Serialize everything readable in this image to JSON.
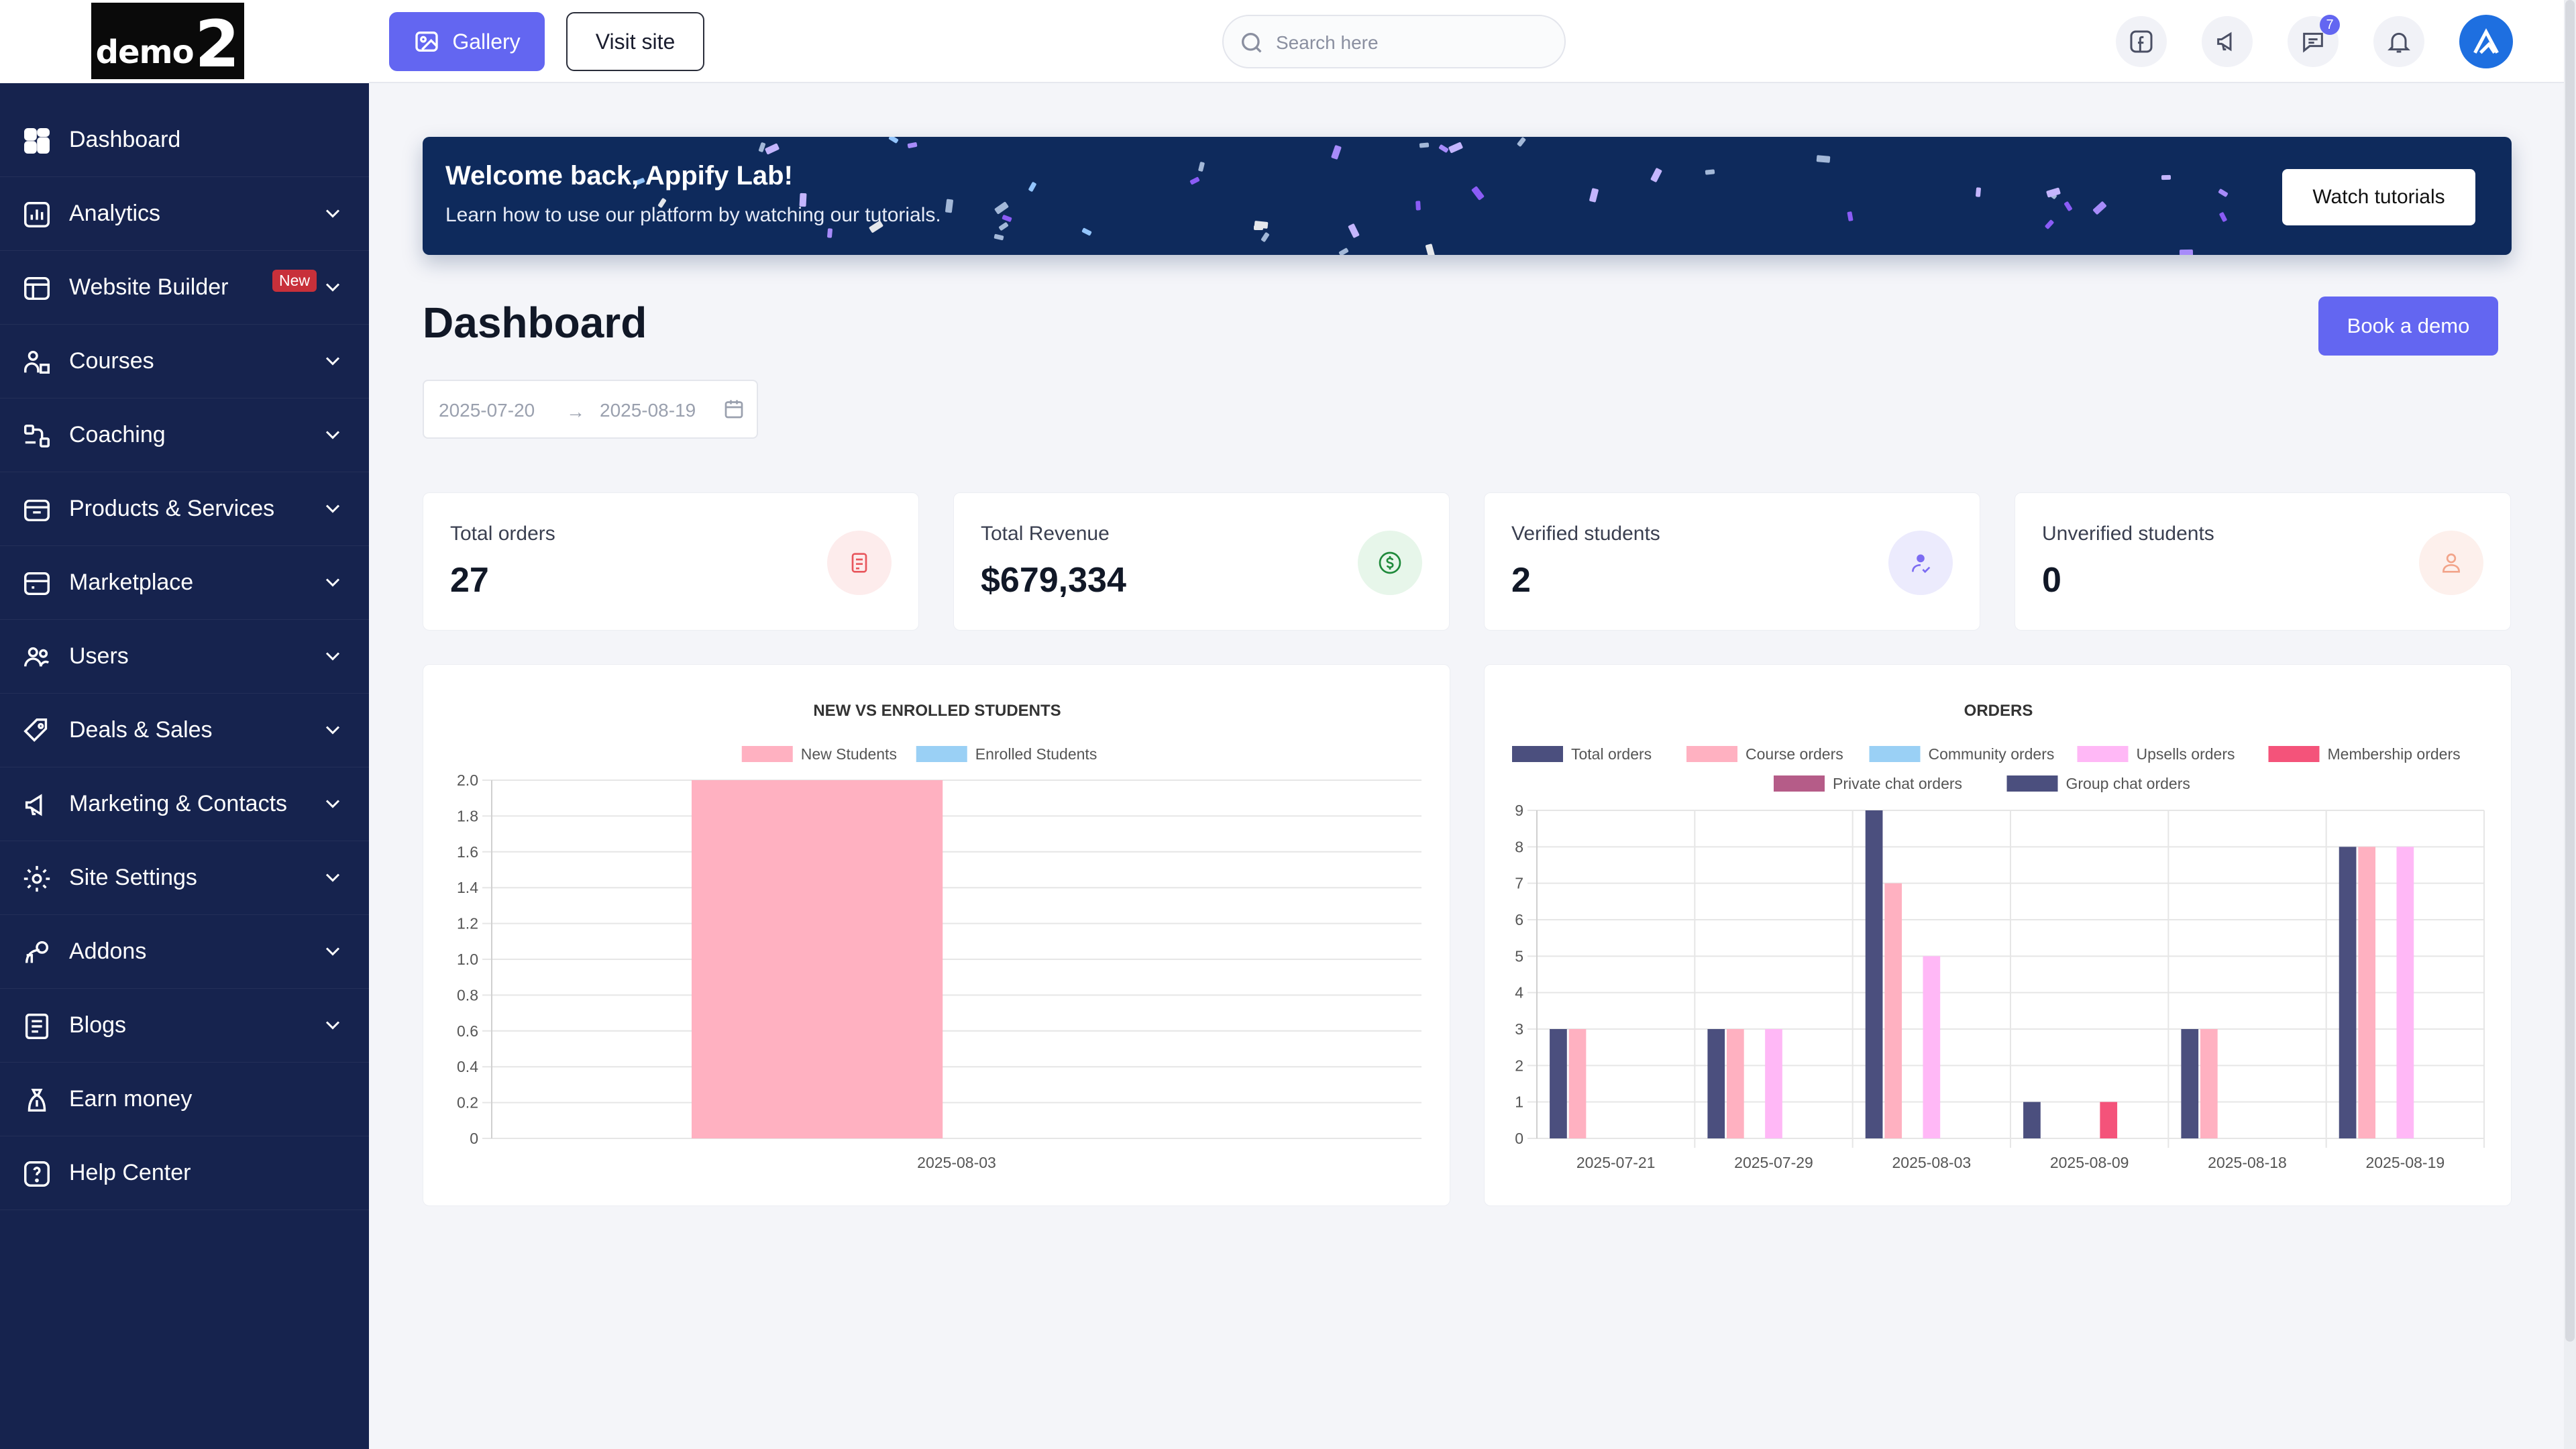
{
  "brand": {
    "logo_text": "demo",
    "logo_number": "2"
  },
  "sidebar": {
    "items": [
      {
        "label": "Dashboard",
        "icon": "dashboard-icon",
        "expandable": false
      },
      {
        "label": "Analytics",
        "icon": "analytics-icon",
        "expandable": true
      },
      {
        "label": "Website Builder",
        "icon": "website-builder-icon",
        "expandable": true,
        "badge": "New"
      },
      {
        "label": "Courses",
        "icon": "courses-icon",
        "expandable": true
      },
      {
        "label": "Coaching",
        "icon": "coaching-icon",
        "expandable": true
      },
      {
        "label": "Products & Services",
        "icon": "products-icon",
        "expandable": true
      },
      {
        "label": "Marketplace",
        "icon": "marketplace-icon",
        "expandable": true
      },
      {
        "label": "Users",
        "icon": "users-icon",
        "expandable": true
      },
      {
        "label": "Deals & Sales",
        "icon": "deals-icon",
        "expandable": true
      },
      {
        "label": "Marketing & Contacts",
        "icon": "marketing-icon",
        "expandable": true
      },
      {
        "label": "Site Settings",
        "icon": "settings-icon",
        "expandable": true
      },
      {
        "label": "Addons",
        "icon": "addons-icon",
        "expandable": true
      },
      {
        "label": "Blogs",
        "icon": "blogs-icon",
        "expandable": true
      },
      {
        "label": "Earn money",
        "icon": "earn-money-icon",
        "expandable": false
      },
      {
        "label": "Help Center",
        "icon": "help-icon",
        "expandable": false
      }
    ]
  },
  "topbar": {
    "gallery_label": "Gallery",
    "visit_label": "Visit site",
    "search_placeholder": "Search here",
    "chat_badge": "7"
  },
  "banner": {
    "title": "Welcome back, Appify Lab!",
    "subtitle": "Learn how to use our platform by watching our tutorials.",
    "button": "Watch tutorials"
  },
  "header": {
    "title": "Dashboard",
    "book_demo": "Book a demo",
    "date_from": "2025-07-20",
    "date_to": "2025-08-19",
    "date_separator": "→"
  },
  "stats": [
    {
      "label": "Total orders",
      "value": "27",
      "icon": "orders-icon",
      "color": "#e8565c",
      "bg": "#fdecec"
    },
    {
      "label": "Total Revenue",
      "value": "$679,334",
      "icon": "revenue-icon",
      "color": "#1f8a3b",
      "bg": "#e7f6ea"
    },
    {
      "label": "Verified students",
      "value": "2",
      "icon": "verified-student-icon",
      "color": "#7c6cf2",
      "bg": "#ecebfd"
    },
    {
      "label": "Unverified students",
      "value": "0",
      "icon": "unverified-student-icon",
      "color": "#f2a48a",
      "bg": "#fdf0ec"
    }
  ],
  "colors": {
    "sidebar": "#16234e",
    "accent": "#6366f1",
    "banner": "#0e2a5c"
  },
  "chart_data": [
    {
      "type": "bar",
      "title": "NEW VS ENROLLED STUDENTS",
      "categories": [
        "2025-08-03"
      ],
      "series": [
        {
          "name": "New Students",
          "color": "#ffb1c1",
          "values": [
            2
          ]
        },
        {
          "name": "Enrolled Students",
          "color": "#9ad0f5",
          "values": [
            0
          ]
        }
      ],
      "ylim": [
        0,
        2
      ],
      "yticks": [
        "0",
        "0.2",
        "0.4",
        "0.6",
        "0.8",
        "1.0",
        "1.2",
        "1.4",
        "1.6",
        "1.8",
        "2.0"
      ],
      "grid": true,
      "legend": "top"
    },
    {
      "type": "bar",
      "title": "ORDERS",
      "categories": [
        "2025-07-21",
        "2025-07-29",
        "2025-08-03",
        "2025-08-09",
        "2025-08-18",
        "2025-08-19"
      ],
      "series": [
        {
          "name": "Total orders",
          "color": "#4b4f7e",
          "values": [
            3,
            3,
            9,
            1,
            3,
            8
          ]
        },
        {
          "name": "Course orders",
          "color": "#ffb1c1",
          "values": [
            3,
            3,
            7,
            0,
            3,
            8
          ]
        },
        {
          "name": "Community orders",
          "color": "#9ad0f5",
          "values": [
            0,
            0,
            0,
            0,
            0,
            0
          ]
        },
        {
          "name": "Upsells orders",
          "color": "#ffb8f6",
          "values": [
            0,
            3,
            5,
            0,
            0,
            8
          ]
        },
        {
          "name": "Membership orders",
          "color": "#f4537a",
          "values": [
            0,
            0,
            0,
            1,
            0,
            0
          ]
        },
        {
          "name": "Private chat orders",
          "color": "#b55c88",
          "values": [
            0,
            0,
            0,
            0,
            0,
            0
          ]
        },
        {
          "name": "Group chat orders",
          "color": "#4b4f7e",
          "values": [
            0,
            0,
            0,
            0,
            0,
            0
          ]
        }
      ],
      "ylim": [
        0,
        9
      ],
      "yticks": [
        "0",
        "1",
        "2",
        "3",
        "4",
        "5",
        "6",
        "7",
        "8",
        "9"
      ],
      "grid": true,
      "legend": "top"
    }
  ]
}
